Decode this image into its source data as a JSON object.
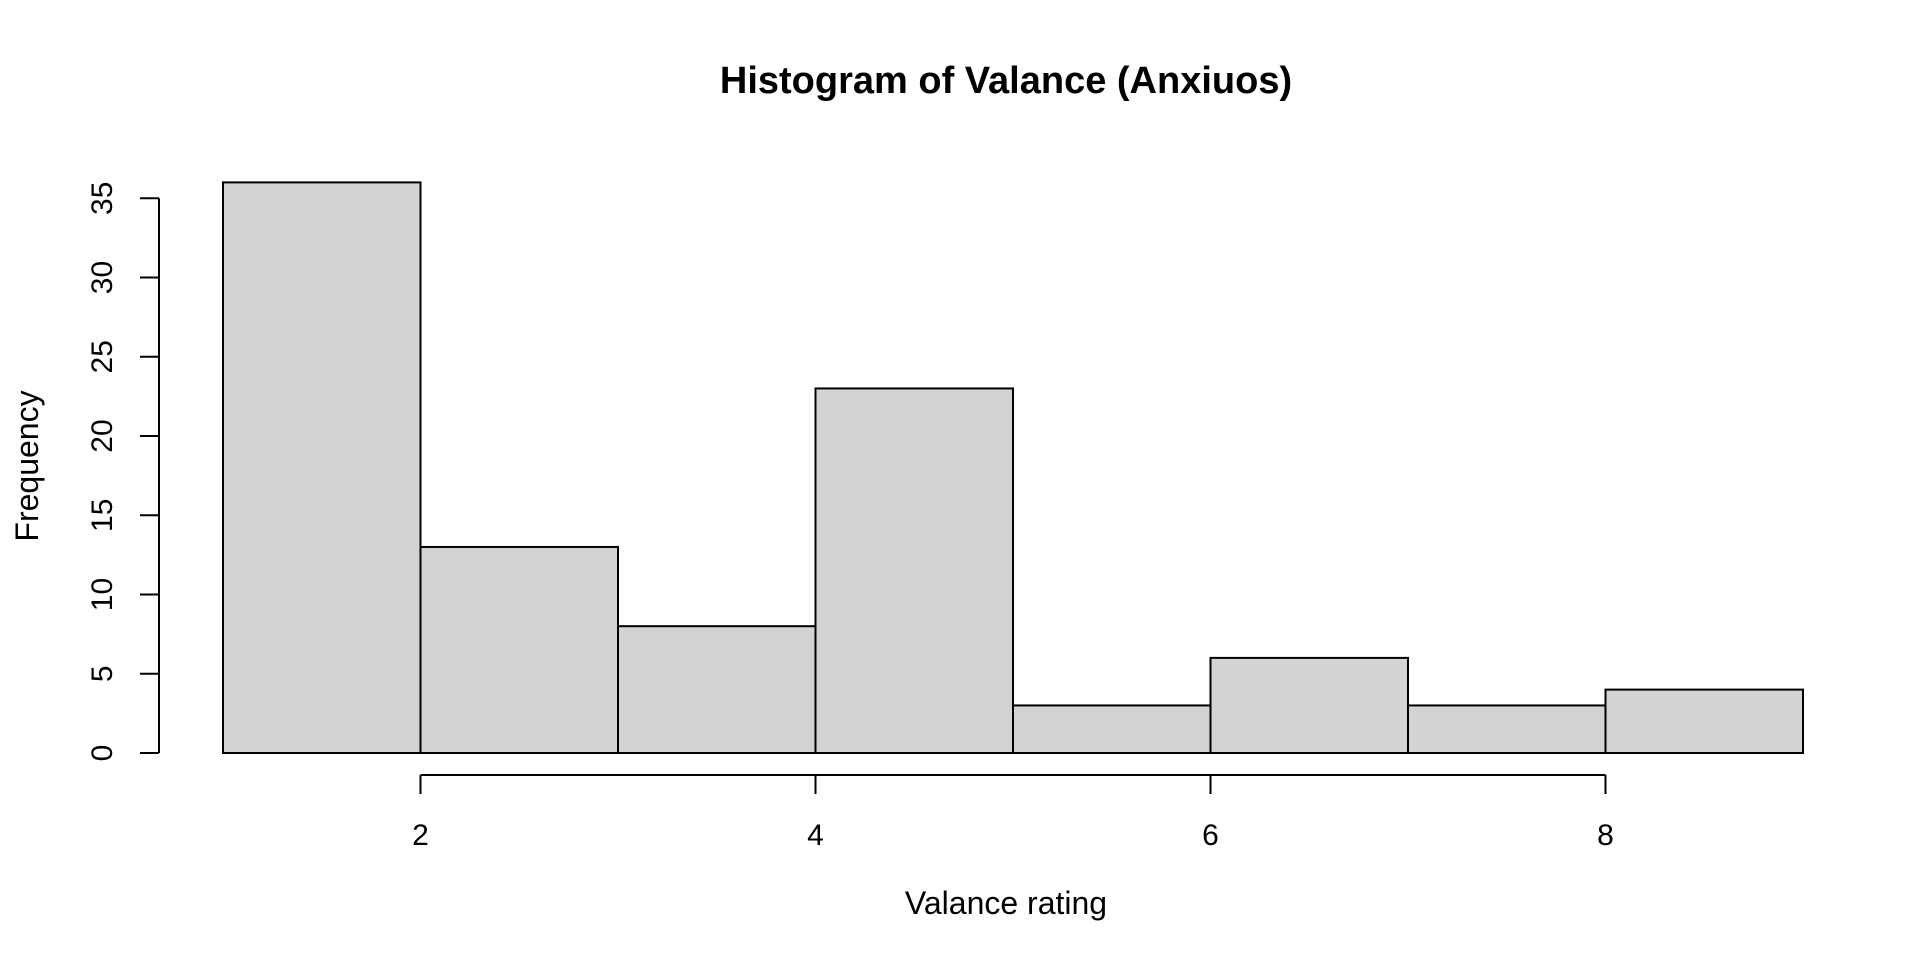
{
  "chart_data": {
    "type": "bar",
    "title": "Histogram of Valance (Anxiuos)",
    "xlabel": "Valance rating",
    "ylabel": "Frequency",
    "bins": [
      {
        "start": 1,
        "end": 2,
        "count": 36
      },
      {
        "start": 2,
        "end": 3,
        "count": 13
      },
      {
        "start": 3,
        "end": 4,
        "count": 8
      },
      {
        "start": 4,
        "end": 5,
        "count": 23
      },
      {
        "start": 5,
        "end": 6,
        "count": 3
      },
      {
        "start": 6,
        "end": 7,
        "count": 6
      },
      {
        "start": 7,
        "end": 8,
        "count": 3
      },
      {
        "start": 8,
        "end": 9,
        "count": 4
      }
    ],
    "xticks": [
      2,
      4,
      6,
      8
    ],
    "yticks": [
      0,
      5,
      10,
      15,
      20,
      25,
      30,
      35
    ],
    "xlim": [
      1,
      9
    ],
    "ylim": [
      0,
      36
    ],
    "bar_color": "#d3d3d3",
    "grid": false,
    "legend": "none"
  }
}
